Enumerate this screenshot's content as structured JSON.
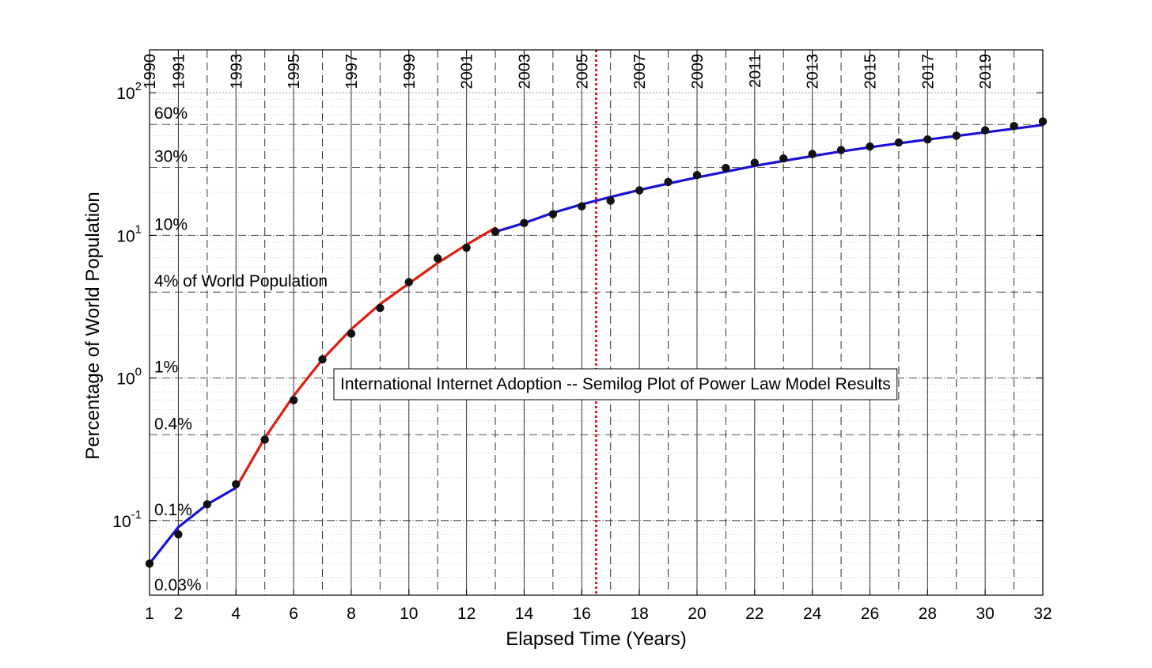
{
  "chart_data": {
    "type": "scatter",
    "title": "International Internet Adoption -- Semilog Plot of Power Law Model Results",
    "xlabel": "Elapsed Time (Years)",
    "ylabel": "Percentage of World Population",
    "xlim": [
      1,
      32
    ],
    "ylim": [
      0.03,
      200
    ],
    "yscale": "log",
    "grid": true,
    "xticks": [
      1,
      2,
      4,
      6,
      8,
      10,
      12,
      14,
      16,
      18,
      20,
      22,
      24,
      26,
      28,
      30,
      32
    ],
    "yticks": [
      {
        "value": 0.1,
        "base": "10",
        "exp": "-1"
      },
      {
        "value": 1,
        "base": "10",
        "exp": "0"
      },
      {
        "value": 10,
        "base": "10",
        "exp": "1"
      },
      {
        "value": 100,
        "base": "10",
        "exp": "2"
      }
    ],
    "year_labels": [
      {
        "x": 1,
        "label": "1990"
      },
      {
        "x": 2,
        "label": "1991"
      },
      {
        "x": 4,
        "label": "1993"
      },
      {
        "x": 6,
        "label": "1995"
      },
      {
        "x": 8,
        "label": "1997"
      },
      {
        "x": 10,
        "label": "1999"
      },
      {
        "x": 12,
        "label": "2001"
      },
      {
        "x": 14,
        "label": "2003"
      },
      {
        "x": 16,
        "label": "2005"
      },
      {
        "x": 18,
        "label": "2007"
      },
      {
        "x": 20,
        "label": "2009"
      },
      {
        "x": 22,
        "label": "2011"
      },
      {
        "x": 24,
        "label": "2013"
      },
      {
        "x": 26,
        "label": "2015"
      },
      {
        "x": 28,
        "label": "2017"
      },
      {
        "x": 30,
        "label": "2019"
      }
    ],
    "reference_levels": [
      {
        "y": 60,
        "label": "60%"
      },
      {
        "y": 30,
        "label": "30%"
      },
      {
        "y": 10,
        "label": "10%"
      },
      {
        "y": 4,
        "label": "4% of World Population"
      },
      {
        "y": 1,
        "label": "1%"
      },
      {
        "y": 0.4,
        "label": "0.4%"
      },
      {
        "y": 0.1,
        "label": "0.1%"
      },
      {
        "y": 0.03,
        "label": "0.03%"
      }
    ],
    "marker_line": {
      "x": 16.5,
      "color": "#e02020",
      "style": "dotted"
    },
    "series": [
      {
        "style": "markers",
        "color": "#111111",
        "x": [
          1,
          2,
          3,
          4,
          5,
          6,
          7,
          8,
          9,
          10,
          11,
          12,
          13,
          14,
          15,
          16,
          17,
          18,
          19,
          20,
          21,
          22,
          23,
          24,
          25,
          26,
          27,
          28,
          29,
          30,
          31,
          32
        ],
        "y": [
          0.05,
          0.08,
          0.13,
          0.18,
          0.37,
          0.7,
          1.35,
          2.05,
          3.1,
          4.7,
          6.9,
          8.2,
          10.6,
          12.2,
          14.1,
          16,
          17.5,
          20.7,
          23.7,
          26.5,
          29.7,
          32.3,
          34.6,
          37.2,
          39.7,
          42,
          44.8,
          47.1,
          50,
          54.5,
          58.5,
          63
        ]
      },
      {
        "style": "line",
        "color": "#1a10d8",
        "x": [
          1,
          2,
          3,
          4
        ],
        "y": [
          0.05,
          0.09,
          0.13,
          0.17
        ]
      },
      {
        "style": "line",
        "color": "#e01b10",
        "x": [
          4,
          5,
          6,
          7,
          8,
          9,
          10,
          11,
          12,
          13
        ],
        "y": [
          0.17,
          0.38,
          0.75,
          1.35,
          2.2,
          3.3,
          4.6,
          6.4,
          8.6,
          11.3
        ]
      },
      {
        "style": "line",
        "color": "#1a10d8",
        "x": [
          13,
          14,
          15,
          16,
          17,
          18,
          19,
          20,
          21,
          22,
          23,
          24,
          25,
          26,
          27,
          28,
          29,
          30,
          31,
          32
        ],
        "y": [
          10.6,
          12.2,
          14.4,
          16.5,
          18.6,
          20.8,
          23.1,
          25.5,
          28,
          30.7,
          33.3,
          36,
          38.8,
          41.5,
          44.2,
          47,
          49.8,
          52.8,
          56,
          59.5
        ]
      }
    ]
  }
}
